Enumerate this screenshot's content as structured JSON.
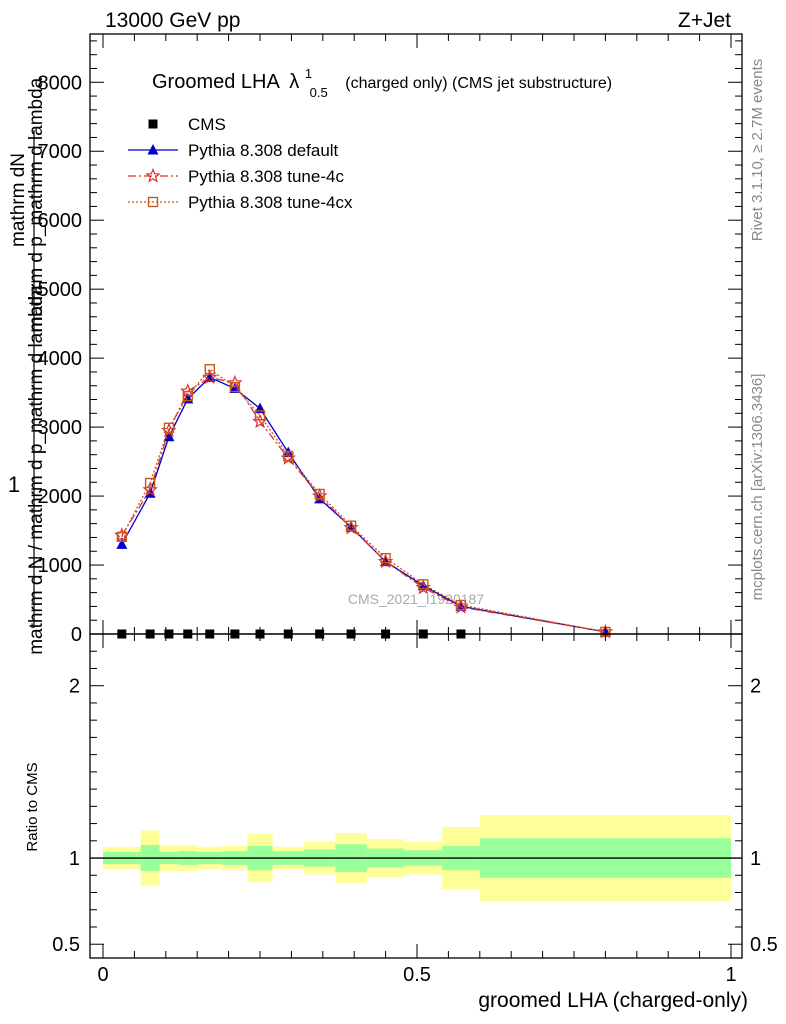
{
  "header": {
    "energy_label": "13000 GeV pp",
    "process_label": "Z+Jet"
  },
  "side_labels": {
    "rivet": "Rivet 3.1.10, ≥ 2.7M events",
    "mcplots": "mcplots.cern.ch [arXiv:1306.3436]"
  },
  "watermark": "CMS_2021_I1920187",
  "chart_data": [
    {
      "type": "line",
      "title_main": "Groomed LHA",
      "title_lambda": "λ",
      "title_sup": "1",
      "title_sub": "0.5",
      "title_tail": "(charged only) (CMS jet substructure)",
      "ylabel_one": "1",
      "ylabel_num": "mathrm dN",
      "ylabel_den1": "mathrm d p_mathrm d lambda",
      "ylabel_den2": "mathrm d N / mathrm d p_mathrm d lambda",
      "xlim": [
        0,
        1
      ],
      "ylim": [
        0,
        8700
      ],
      "y_ticks": [
        {
          "value": 0,
          "label": "0"
        },
        {
          "value": 1000,
          "label": "1000"
        },
        {
          "value": 2000,
          "label": "2000"
        },
        {
          "value": 3000,
          "label": "3000"
        },
        {
          "value": 4000,
          "label": "4000"
        },
        {
          "value": 5000,
          "label": "5000"
        },
        {
          "value": 6000,
          "label": "6000"
        },
        {
          "value": 7000,
          "label": "7000"
        },
        {
          "value": 8000,
          "label": "8000"
        }
      ],
      "legend_position": "top-left",
      "x": [
        0.03,
        0.075,
        0.105,
        0.135,
        0.17,
        0.21,
        0.25,
        0.295,
        0.345,
        0.395,
        0.45,
        0.51,
        0.57,
        0.8
      ],
      "series": [
        {
          "name": "CMS",
          "color": "#000000",
          "marker": "square",
          "x": [
            0.03,
            0.075,
            0.105,
            0.135,
            0.17,
            0.21,
            0.25,
            0.295,
            0.345,
            0.395,
            0.45,
            0.51,
            0.57
          ],
          "values": [
            0,
            0,
            0,
            0,
            0,
            0,
            0,
            0,
            0,
            0,
            0,
            0,
            0
          ]
        },
        {
          "name": "Pythia 8.308 default",
          "color": "#0000cc",
          "marker": "triangle",
          "dash": "",
          "values": [
            1300,
            2040,
            2860,
            3410,
            3720,
            3560,
            3270,
            2630,
            1960,
            1550,
            1050,
            700,
            400,
            30
          ]
        },
        {
          "name": "Pythia 8.308 tune-4c",
          "color": "#e03030",
          "marker": "star",
          "dash": "8 3 2 3",
          "values": [
            1430,
            2090,
            2950,
            3520,
            3720,
            3640,
            3080,
            2550,
            2000,
            1540,
            1050,
            670,
            390,
            30
          ]
        },
        {
          "name": "Pythia 8.308 tune-4cx",
          "color": "#c85a1e",
          "marker": "open-square",
          "dash": "2 2",
          "values": [
            1410,
            2190,
            2990,
            3450,
            3840,
            3580,
            3170,
            2580,
            2030,
            1570,
            1100,
            720,
            420,
            30
          ]
        }
      ]
    },
    {
      "type": "area",
      "ylabel": "Ratio to CMS",
      "xlabel": "groomed LHA (charged-only)",
      "xlim": [
        0,
        1
      ],
      "ylim": [
        0.42,
        2.3
      ],
      "y_ticks": [
        {
          "value": 0.5,
          "label": "0.5"
        },
        {
          "value": 1,
          "label": "1"
        },
        {
          "value": 2,
          "label": "2"
        }
      ],
      "x_ticks": [
        {
          "value": 0,
          "label": "0"
        },
        {
          "value": 0.5,
          "label": "0.5"
        },
        {
          "value": 1,
          "label": "1"
        }
      ],
      "bins": [
        {
          "lo": 0.0,
          "hi": 0.06,
          "inner": [
            0.965,
            1.035
          ],
          "outer": [
            0.935,
            1.065
          ]
        },
        {
          "lo": 0.06,
          "hi": 0.09,
          "inner": [
            0.925,
            1.075
          ],
          "outer": [
            0.84,
            1.16
          ]
        },
        {
          "lo": 0.09,
          "hi": 0.12,
          "inner": [
            0.965,
            1.035
          ],
          "outer": [
            0.925,
            1.075
          ]
        },
        {
          "lo": 0.12,
          "hi": 0.15,
          "inner": [
            0.96,
            1.04
          ],
          "outer": [
            0.925,
            1.075
          ]
        },
        {
          "lo": 0.15,
          "hi": 0.19,
          "inner": [
            0.965,
            1.035
          ],
          "outer": [
            0.935,
            1.065
          ]
        },
        {
          "lo": 0.19,
          "hi": 0.23,
          "inner": [
            0.96,
            1.04
          ],
          "outer": [
            0.93,
            1.07
          ]
        },
        {
          "lo": 0.23,
          "hi": 0.27,
          "inner": [
            0.93,
            1.07
          ],
          "outer": [
            0.86,
            1.14
          ]
        },
        {
          "lo": 0.27,
          "hi": 0.32,
          "inner": [
            0.96,
            1.04
          ],
          "outer": [
            0.935,
            1.065
          ]
        },
        {
          "lo": 0.32,
          "hi": 0.37,
          "inner": [
            0.95,
            1.05
          ],
          "outer": [
            0.905,
            1.095
          ]
        },
        {
          "lo": 0.37,
          "hi": 0.42,
          "inner": [
            0.92,
            1.08
          ],
          "outer": [
            0.855,
            1.145
          ]
        },
        {
          "lo": 0.42,
          "hi": 0.48,
          "inner": [
            0.945,
            1.055
          ],
          "outer": [
            0.89,
            1.11
          ]
        },
        {
          "lo": 0.48,
          "hi": 0.54,
          "inner": [
            0.955,
            1.045
          ],
          "outer": [
            0.905,
            1.095
          ]
        },
        {
          "lo": 0.54,
          "hi": 0.6,
          "inner": [
            0.93,
            1.07
          ],
          "outer": [
            0.82,
            1.18
          ]
        },
        {
          "lo": 0.6,
          "hi": 1.0,
          "inner": [
            0.885,
            1.115
          ],
          "outer": [
            0.75,
            1.25
          ]
        }
      ]
    }
  ]
}
